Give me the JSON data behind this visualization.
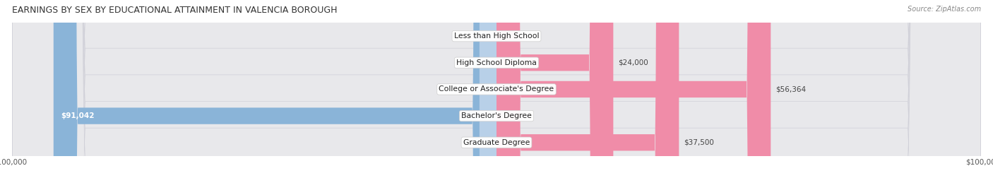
{
  "title": "EARNINGS BY SEX BY EDUCATIONAL ATTAINMENT IN VALENCIA BOROUGH",
  "source": "Source: ZipAtlas.com",
  "categories": [
    "Less than High School",
    "High School Diploma",
    "College or Associate's Degree",
    "Bachelor's Degree",
    "Graduate Degree"
  ],
  "male_values": [
    0,
    0,
    0,
    91042,
    0
  ],
  "female_values": [
    0,
    24000,
    56364,
    0,
    37500
  ],
  "max_value": 100000,
  "male_color": "#8ab4d8",
  "female_color": "#f08ca8",
  "male_light_color": "#b8d0e8",
  "female_light_color": "#f8c0d0",
  "row_bg_color": "#e8e8eb",
  "title_fontsize": 9.0,
  "label_fontsize": 7.8,
  "value_fontsize": 7.5,
  "tick_fontsize": 7.5,
  "legend_fontsize": 8.0,
  "background_color": "#ffffff"
}
